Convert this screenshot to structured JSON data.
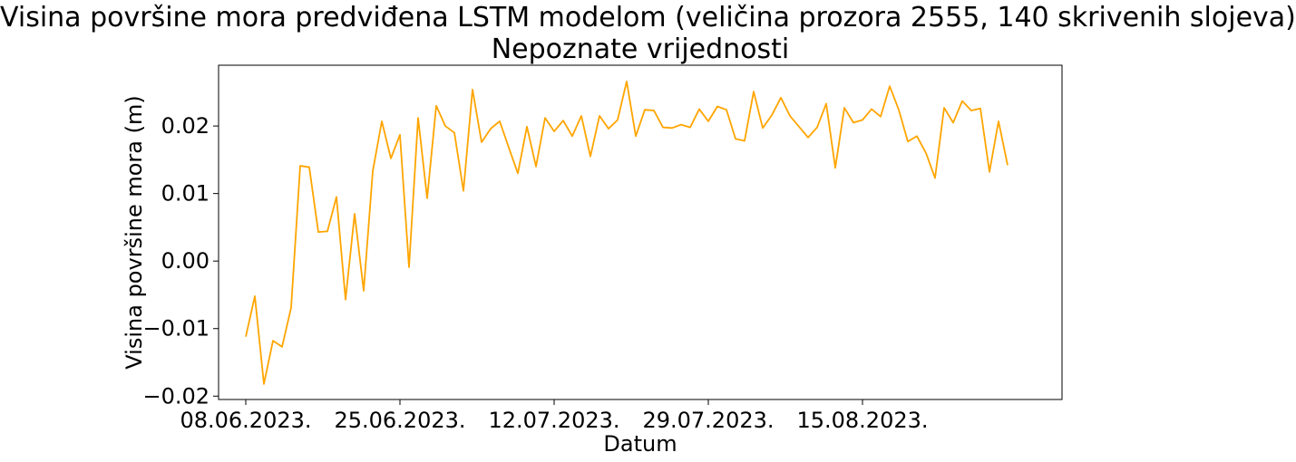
{
  "chart_data": {
    "type": "line",
    "title": "Visina površine mora predviđena LSTM modelom (veličina prozora 2555, 140 skrivenih slojeva)",
    "subtitle": "Nepoznate vrijednosti",
    "xlabel": "Datum",
    "ylabel": "Visina površine mora (m)",
    "x_start": "08.06.2023.",
    "x_step_days": 1,
    "xlim": [
      -3,
      90
    ],
    "ylim": [
      -0.0205,
      0.029
    ],
    "x_ticks": [
      {
        "pos": 0,
        "label": "08.06.2023."
      },
      {
        "pos": 17,
        "label": "25.06.2023."
      },
      {
        "pos": 34,
        "label": "12.07.2023."
      },
      {
        "pos": 51,
        "label": "29.07.2023."
      },
      {
        "pos": 68,
        "label": "15.08.2023."
      }
    ],
    "y_ticks": [
      {
        "value": -0.02,
        "label": "−0.02"
      },
      {
        "value": -0.01,
        "label": "−0.01"
      },
      {
        "value": 0.0,
        "label": "0.00"
      },
      {
        "value": 0.01,
        "label": "0.01"
      },
      {
        "value": 0.02,
        "label": "0.02"
      }
    ],
    "grid": false,
    "color": "#FFA500",
    "series": [
      {
        "values": [
          -0.0112,
          -0.0052,
          -0.0182,
          -0.0118,
          -0.0127,
          -0.0069,
          0.0141,
          0.0139,
          0.0043,
          0.0044,
          0.0095,
          -0.0057,
          0.007,
          -0.0044,
          0.0133,
          0.0207,
          0.0152,
          0.0187,
          -0.0009,
          0.0212,
          0.0093,
          0.023,
          0.02,
          0.019,
          0.0104,
          0.0254,
          0.0176,
          0.0196,
          0.0207,
          0.0168,
          0.013,
          0.0199,
          0.014,
          0.0212,
          0.0192,
          0.0208,
          0.0185,
          0.0215,
          0.0155,
          0.0215,
          0.0196,
          0.0209,
          0.0266,
          0.0185,
          0.0224,
          0.0223,
          0.0198,
          0.0197,
          0.0202,
          0.0198,
          0.0225,
          0.0207,
          0.0229,
          0.0224,
          0.0181,
          0.0178,
          0.0251,
          0.0197,
          0.0216,
          0.0242,
          0.0215,
          0.0199,
          0.0183,
          0.0198,
          0.0233,
          0.0138,
          0.0227,
          0.0205,
          0.0209,
          0.0225,
          0.0214,
          0.0259,
          0.0224,
          0.0177,
          0.0185,
          0.016,
          0.0123,
          0.0227,
          0.0205,
          0.0237,
          0.0223,
          0.0226,
          0.0132,
          0.0207,
          0.0142
        ]
      }
    ]
  }
}
